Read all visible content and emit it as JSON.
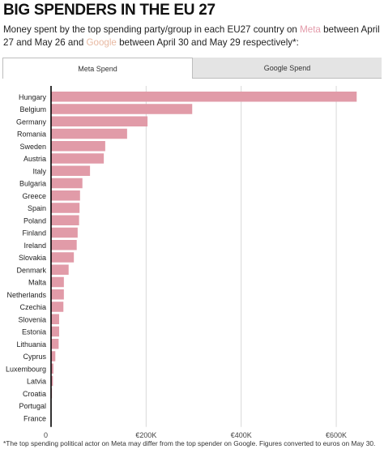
{
  "title": "BIG SPENDERS IN THE EU 27",
  "subtitle": {
    "part1": "Money spent by the top spending party/group in each EU27 country on ",
    "meta_word": "Meta",
    "part2": " between April 27 and May 26 and ",
    "google_word": "Google",
    "part3": " between April 30 and May 29 respectively*:"
  },
  "tabs": [
    {
      "label": "Meta Spend",
      "active": true
    },
    {
      "label": "Google Spend",
      "active": false
    }
  ],
  "colors": {
    "bar": "#e19ba8",
    "meta_text": "#e39aa9",
    "google_text": "#e8b9a2",
    "grid": "#d9d9d9",
    "axis": "#000000"
  },
  "chart_data": {
    "type": "bar",
    "orientation": "horizontal",
    "categories": [
      "Hungary",
      "Belgium",
      "Germany",
      "Romania",
      "Sweden",
      "Austria",
      "Italy",
      "Bulgaria",
      "Greece",
      "Spain",
      "Poland",
      "Finland",
      "Ireland",
      "Slovakia",
      "Denmark",
      "Malta",
      "Netherlands",
      "Czechia",
      "Slovenia",
      "Estonia",
      "Lithuania",
      "Cyprus",
      "Luxembourg",
      "Latvia",
      "Croatia",
      "Portugal",
      "France"
    ],
    "values": [
      643000,
      297000,
      203000,
      160000,
      114000,
      111000,
      82000,
      66000,
      61000,
      60000,
      59000,
      56000,
      54000,
      48000,
      37000,
      27000,
      27000,
      26000,
      17000,
      17000,
      16000,
      9000,
      5000,
      4000,
      2000,
      500,
      300
    ],
    "xlim": [
      0,
      680000
    ],
    "xticks": [
      {
        "value": 0,
        "label": "0"
      },
      {
        "value": 200000,
        "label": "€200K"
      },
      {
        "value": 400000,
        "label": "€400K"
      },
      {
        "value": 600000,
        "label": "€600K"
      }
    ],
    "grid": true
  },
  "footnote": "*The top spending political actor on Meta may differ from the top spender on Google. Figures converted to euros on May 30."
}
